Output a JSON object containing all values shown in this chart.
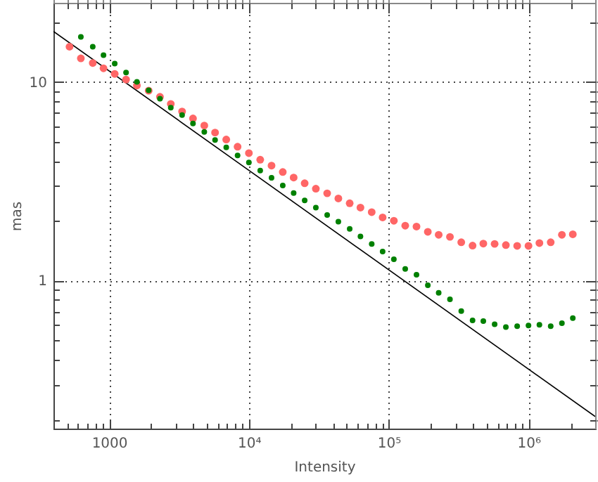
{
  "chart_data": {
    "type": "scatter",
    "xlabel": "Intensity",
    "ylabel": "mas",
    "log": "xy",
    "grid": true,
    "marker": "circle",
    "xlim": [
      400,
      3000000
    ],
    "ylim": [
      0.18,
      25
    ],
    "xticks": [
      {
        "value": 500,
        "label": null
      },
      {
        "value": 600,
        "label": null
      },
      {
        "value": 700,
        "label": null
      },
      {
        "value": 800,
        "label": null
      },
      {
        "value": 900,
        "label": null
      },
      1000,
      {
        "value": 2000,
        "label": null
      },
      {
        "value": 3000,
        "label": null
      },
      {
        "value": 4000,
        "label": null
      },
      {
        "value": 5000,
        "label": null
      },
      {
        "value": 6000,
        "label": null
      },
      {
        "value": 7000,
        "label": null
      },
      {
        "value": 8000,
        "label": null
      },
      {
        "value": 9000,
        "label": null
      },
      {
        "value": 10000,
        "label": "10⁴"
      },
      {
        "value": 20000,
        "label": null
      },
      {
        "value": 30000,
        "label": null
      },
      {
        "value": 40000,
        "label": null
      },
      {
        "value": 50000,
        "label": null
      },
      {
        "value": 60000,
        "label": null
      },
      {
        "value": 70000,
        "label": null
      },
      {
        "value": 80000,
        "label": null
      },
      {
        "value": 90000,
        "label": null
      },
      {
        "value": 100000,
        "label": "10⁵"
      },
      {
        "value": 200000,
        "label": null
      },
      {
        "value": 300000,
        "label": null
      },
      {
        "value": 400000,
        "label": null
      },
      {
        "value": 500000,
        "label": null
      },
      {
        "value": 600000,
        "label": null
      },
      {
        "value": 700000,
        "label": null
      },
      {
        "value": 800000,
        "label": null
      },
      {
        "value": 900000,
        "label": null
      },
      {
        "value": 1000000,
        "label": "10⁶"
      },
      {
        "value": 2000000,
        "label": null
      }
    ],
    "yticks": [
      {
        "value": 0.2,
        "label": null
      },
      {
        "value": 0.3,
        "label": null
      },
      {
        "value": 0.4,
        "label": null
      },
      {
        "value": 0.5,
        "label": null
      },
      {
        "value": 0.6,
        "label": null
      },
      {
        "value": 0.7,
        "label": null
      },
      {
        "value": 0.8,
        "label": null
      },
      {
        "value": 0.9,
        "label": null
      },
      1,
      {
        "value": 2,
        "label": null
      },
      {
        "value": 3,
        "label": null
      },
      {
        "value": 4,
        "label": null
      },
      {
        "value": 5,
        "label": null
      },
      {
        "value": 6,
        "label": null
      },
      {
        "value": 7,
        "label": null
      },
      {
        "value": 8,
        "label": null
      },
      {
        "value": 9,
        "label": null
      },
      10,
      {
        "value": 20,
        "label": null
      }
    ],
    "series": [
      {
        "type": "line",
        "marker": "none",
        "color": "#000000",
        "x": [
          400,
          3000000
        ],
        "values": [
          17.95,
          0.207
        ]
      },
      {
        "color": "#ff6666",
        "x": [
          521,
          628,
          764,
          912,
          1097,
          1322,
          1581,
          1919,
          2311,
          2762,
          3327,
          3981,
          4797,
          5728,
          6887,
          8299,
          10000,
          12050,
          14520,
          17470,
          20900,
          25060,
          30130,
          36300,
          43650,
          52600,
          62800,
          75600,
          90500,
          108900,
          131300,
          158100,
          190500,
          227800,
          274300,
          330500,
          398100,
          475300,
          572600,
          689000,
          830000,
          1000000,
          1197000,
          1442000,
          1734000,
          2075000
        ],
        "values": [
          15.03,
          13.13,
          12.44,
          11.71,
          10.97,
          10.28,
          9.59,
          9.03,
          8.41,
          7.75,
          7.1,
          6.55,
          6.03,
          5.56,
          5.13,
          4.72,
          4.38,
          4.06,
          3.79,
          3.52,
          3.3,
          3.09,
          2.9,
          2.75,
          2.59,
          2.45,
          2.33,
          2.21,
          2.08,
          2.0,
          1.89,
          1.87,
          1.76,
          1.7,
          1.66,
          1.56,
          1.5,
          1.535,
          1.53,
          1.51,
          1.495,
          1.495,
          1.545,
          1.56,
          1.7,
          1.71
        ]
      },
      {
        "color": "#008000",
        "x": [
          628,
          764,
          912,
          1097,
          1322,
          1581,
          1919,
          2311,
          2762,
          3327,
          3981,
          4797,
          5728,
          6887,
          8299,
          10000,
          12050,
          14520,
          17470,
          20900,
          25060,
          30130,
          36300,
          43650,
          52600,
          62800,
          75600,
          90500,
          108900,
          131300,
          158100,
          190500,
          227800,
          274300,
          330500,
          398100,
          475300,
          572600,
          689000,
          830000,
          1000000,
          1197000,
          1442000,
          1734000,
          2075000
        ],
        "values": [
          16.85,
          15.03,
          13.63,
          12.36,
          11.15,
          10.0,
          9.07,
          8.22,
          7.42,
          6.81,
          6.17,
          5.6,
          5.1,
          4.68,
          4.26,
          3.93,
          3.58,
          3.29,
          3.01,
          2.76,
          2.53,
          2.33,
          2.14,
          1.98,
          1.82,
          1.67,
          1.53,
          1.4,
          1.28,
          1.145,
          1.07,
          0.947,
          0.868,
          0.805,
          0.702,
          0.63,
          0.625,
          0.603,
          0.584,
          0.59,
          0.594,
          0.599,
          0.59,
          0.61,
          0.647
        ]
      }
    ]
  }
}
